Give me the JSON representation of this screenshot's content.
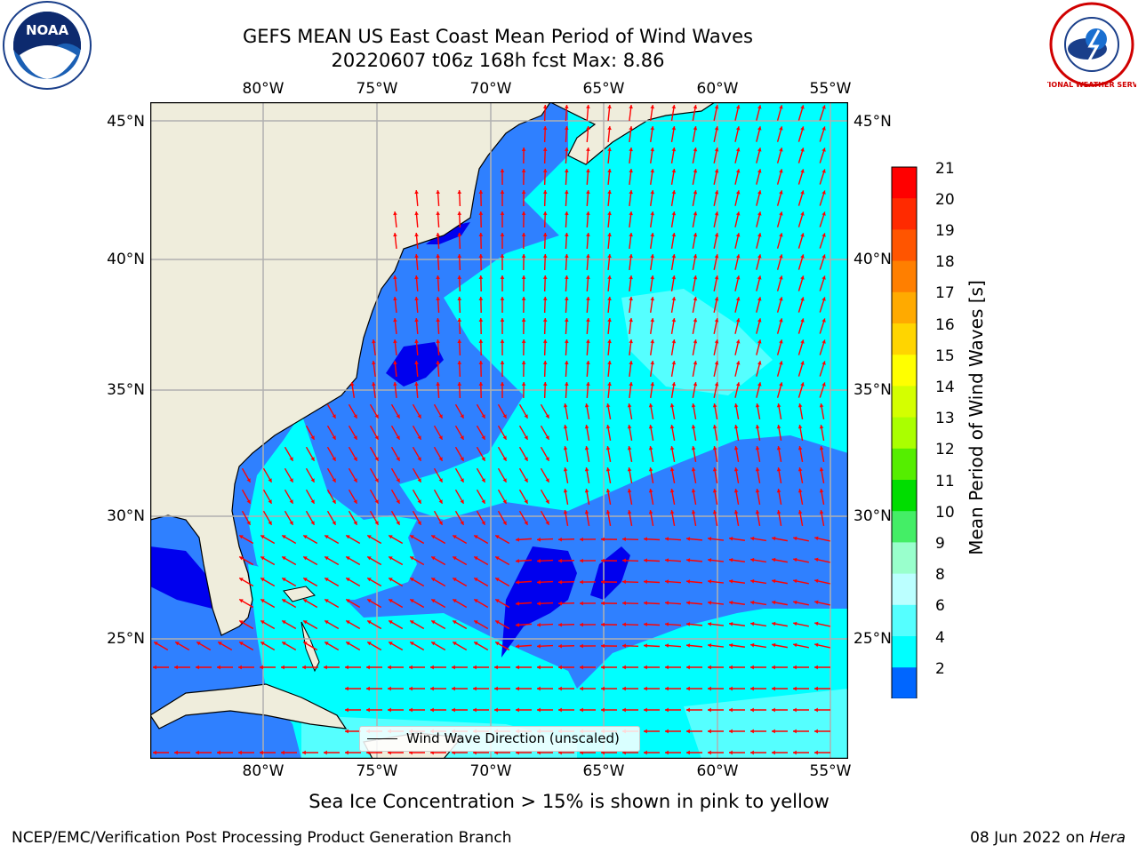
{
  "header": {
    "title_line1": "GEFS MEAN US East Coast Mean Period of Wind Waves",
    "title_line2": "20220607 t06z 168h fcst   Max: 8.86"
  },
  "logos": {
    "left": {
      "text": "NOAA",
      "icon": "noaa-logo"
    },
    "right": {
      "text": "NATIONAL WEATHER SERVICE",
      "icon": "nws-logo"
    }
  },
  "map": {
    "lon_ticks": [
      "80°W",
      "75°W",
      "70°W",
      "65°W",
      "60°W",
      "55°W"
    ],
    "lat_ticks": [
      "45°N",
      "40°N",
      "35°N",
      "30°N",
      "25°N"
    ],
    "legend_label": "Wind Wave Direction (unscaled)",
    "colors": {
      "land": "#efeddc",
      "arrows": "#ff0000",
      "grid": "#b0b0b0"
    }
  },
  "colorbar": {
    "label": "Mean Period of Wind Waves [s]",
    "ticks": [
      "21",
      "20",
      "19",
      "18",
      "17",
      "16",
      "15",
      "14",
      "13",
      "12",
      "11",
      "10",
      "9",
      "8",
      "6",
      "4",
      "2"
    ],
    "colors": [
      "#ff0000",
      "#ff2a00",
      "#ff5500",
      "#ff7f00",
      "#ffaa00",
      "#ffd500",
      "#ffff00",
      "#d4ff00",
      "#aaff00",
      "#55ee00",
      "#00dd00",
      "#44ee66",
      "#99ffcc",
      "#bbffff",
      "#55ffff",
      "#00ffff",
      "#0066ff"
    ],
    "under_color": "#0000ee"
  },
  "footer": {
    "ice_note": "Sea Ice Concentration > 15% is shown in pink to yellow",
    "left": "NCEP/EMC/Verification Post Processing Product Generation Branch",
    "right_date": "08 Jun 2022 on ",
    "right_host": "Hera"
  }
}
